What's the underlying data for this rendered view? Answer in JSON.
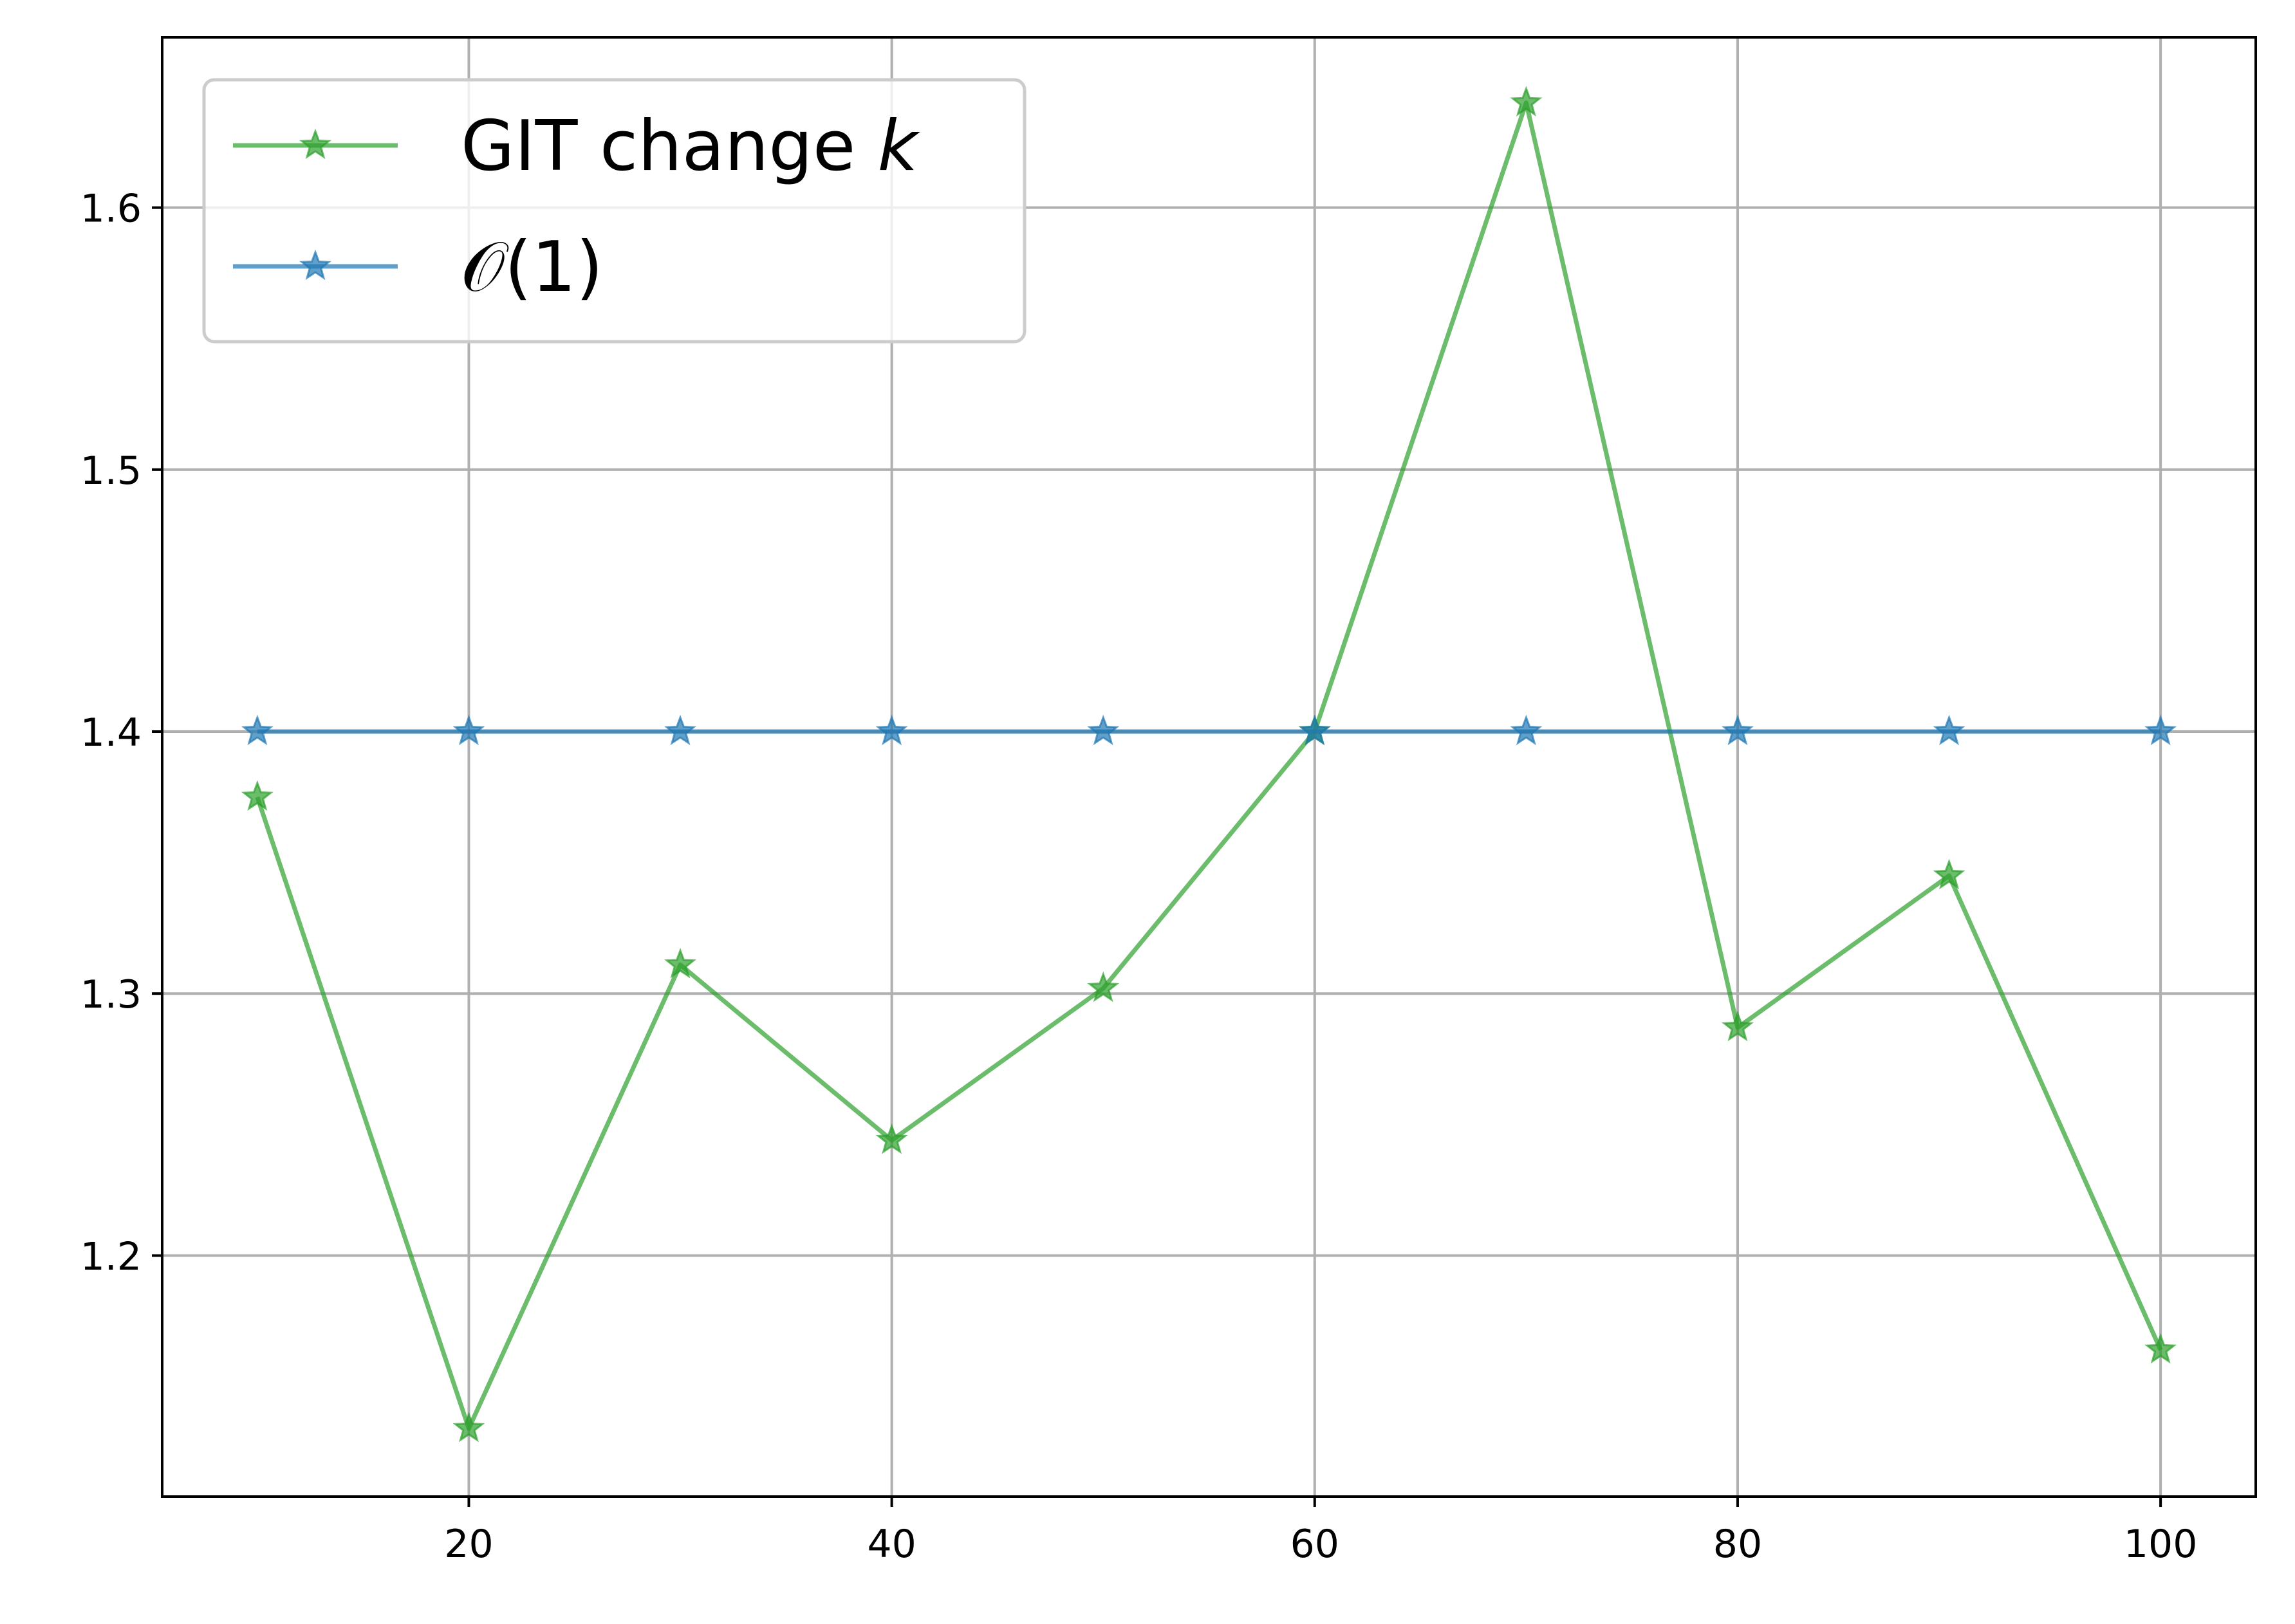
{
  "chart_data": {
    "type": "line",
    "title": "",
    "xlabel": "",
    "ylabel": "",
    "x": [
      10,
      20,
      30,
      40,
      50,
      60,
      70,
      80,
      90,
      100
    ],
    "xlim": [
      5.5,
      104.5
    ],
    "ylim": [
      1.108,
      1.665
    ],
    "x_ticks": [
      20,
      40,
      60,
      80,
      100
    ],
    "x_tick_labels": [
      "20",
      "40",
      "60",
      "80",
      "100"
    ],
    "y_ticks": [
      1.2,
      1.3,
      1.4,
      1.5,
      1.6
    ],
    "y_tick_labels": [
      "1.2",
      "1.3",
      "1.4",
      "1.5",
      "1.6"
    ],
    "grid": true,
    "legend_position": "top-left",
    "series": [
      {
        "name": "GIT change k",
        "legend_text": "GIT change ",
        "legend_italic": "k",
        "color": "#2ca02c",
        "marker": "star",
        "values": [
          1.375,
          1.134,
          1.311,
          1.244,
          1.302,
          1.4,
          1.64,
          1.287,
          1.345,
          1.164
        ]
      },
      {
        "name": "𝒪(1)",
        "legend_text": "𝒪(1)",
        "legend_italic": "",
        "color": "#1f77b4",
        "marker": "star",
        "values": [
          1.4,
          1.4,
          1.4,
          1.4,
          1.4,
          1.4,
          1.4,
          1.4,
          1.4,
          1.4
        ]
      }
    ]
  }
}
